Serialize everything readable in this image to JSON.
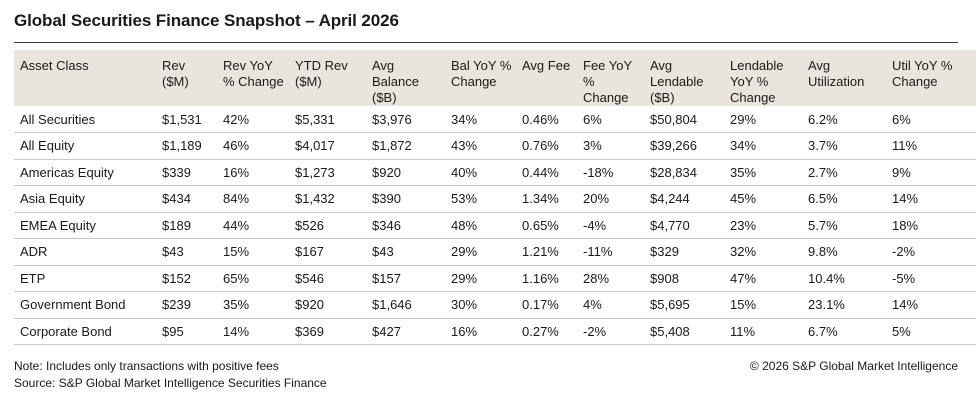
{
  "title": "Global Securities Finance Snapshot – April 2026",
  "header_bg": "#e9e5dd",
  "columns": [
    "Asset Class",
    "Rev ($M)",
    "Rev YoY % Change",
    "YTD Rev ($M)",
    "Avg Balance ($B)",
    "Bal YoY % Change",
    "Avg Fee",
    "Fee YoY % Change",
    "Avg Lendable ($B)",
    "Lendable YoY % Change",
    "Avg Utilization",
    "Util YoY % Change"
  ],
  "rows": [
    [
      "All Securities",
      "$1,531",
      "42%",
      "$5,331",
      "$3,976",
      "34%",
      "0.46%",
      "6%",
      "$50,804",
      "29%",
      "6.2%",
      "6%"
    ],
    [
      "All Equity",
      "$1,189",
      "46%",
      "$4,017",
      "$1,872",
      "43%",
      "0.76%",
      "3%",
      "$39,266",
      "34%",
      "3.7%",
      "11%"
    ],
    [
      "Americas Equity",
      "$339",
      "16%",
      "$1,273",
      "$920",
      "40%",
      "0.44%",
      "-18%",
      "$28,834",
      "35%",
      "2.7%",
      "9%"
    ],
    [
      "Asia Equity",
      "$434",
      "84%",
      "$1,432",
      "$390",
      "53%",
      "1.34%",
      "20%",
      "$4,244",
      "45%",
      "6.5%",
      "14%"
    ],
    [
      "EMEA Equity",
      "$189",
      "44%",
      "$526",
      "$346",
      "48%",
      "0.65%",
      "-4%",
      "$4,770",
      "23%",
      "5.7%",
      "18%"
    ],
    [
      "ADR",
      "$43",
      "15%",
      "$167",
      "$43",
      "29%",
      "1.21%",
      "-11%",
      "$329",
      "32%",
      "9.8%",
      "-2%"
    ],
    [
      "ETP",
      "$152",
      "65%",
      "$546",
      "$157",
      "29%",
      "1.16%",
      "28%",
      "$908",
      "47%",
      "10.4%",
      "-5%"
    ],
    [
      "Government Bond",
      "$239",
      "35%",
      "$920",
      "$1,646",
      "30%",
      "0.17%",
      "4%",
      "$5,695",
      "15%",
      "23.1%",
      "14%"
    ],
    [
      "Corporate Bond",
      "$95",
      "14%",
      "$369",
      "$427",
      "16%",
      "0.27%",
      "-2%",
      "$5,408",
      "11%",
      "6.7%",
      "5%"
    ]
  ],
  "footer": {
    "note": "Note: Includes only transactions with positive fees",
    "source": "Source: S&P Global Market Intelligence Securities Finance",
    "copyright": "© 2026 S&P Global Market Intelligence"
  }
}
